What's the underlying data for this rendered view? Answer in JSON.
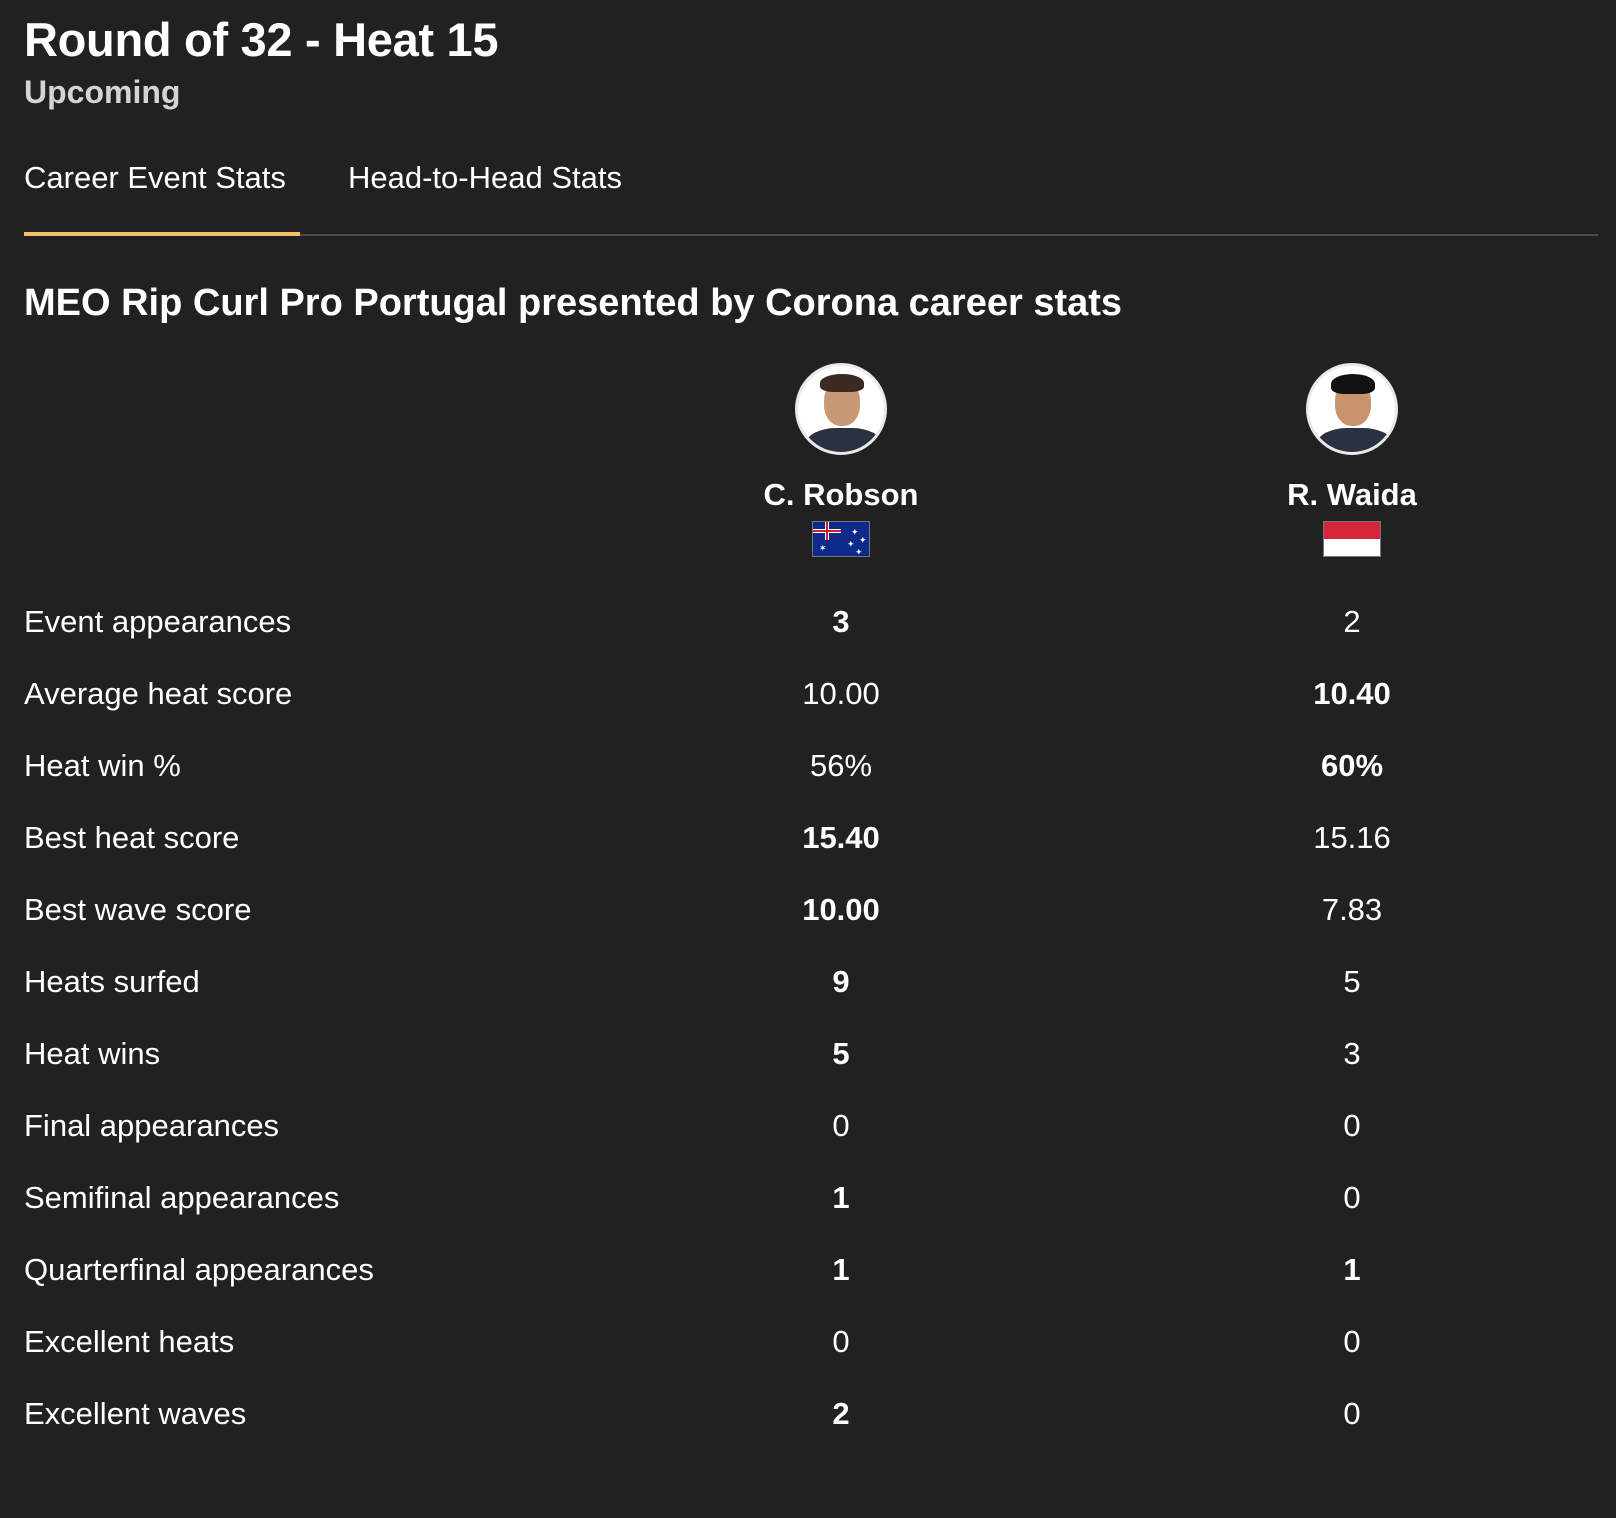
{
  "header": {
    "title": "Round of 32 - Heat 15",
    "status": "Upcoming"
  },
  "tabs": [
    {
      "label": "Career Event Stats",
      "active": true
    },
    {
      "label": "Head-to-Head Stats",
      "active": false
    }
  ],
  "accent_color": "#f4c16f",
  "section_title": "MEO Rip Curl Pro Portugal presented by Corona career stats",
  "surfers": [
    {
      "name": "C. Robson",
      "flag": "australia-flag-icon"
    },
    {
      "name": "R. Waida",
      "flag": "indonesia-flag-icon"
    }
  ],
  "stats": [
    {
      "label": "Event appearances",
      "a": "3",
      "b": "2",
      "leader": "a"
    },
    {
      "label": "Average heat score",
      "a": "10.00",
      "b": "10.40",
      "leader": "b"
    },
    {
      "label": "Heat win %",
      "a": "56%",
      "b": "60%",
      "leader": "b"
    },
    {
      "label": "Best heat score",
      "a": "15.40",
      "b": "15.16",
      "leader": "a"
    },
    {
      "label": "Best wave score",
      "a": "10.00",
      "b": "7.83",
      "leader": "a"
    },
    {
      "label": "Heats surfed",
      "a": "9",
      "b": "5",
      "leader": "a"
    },
    {
      "label": "Heat wins",
      "a": "5",
      "b": "3",
      "leader": "a"
    },
    {
      "label": "Final appearances",
      "a": "0",
      "b": "0",
      "leader": "none"
    },
    {
      "label": "Semifinal appearances",
      "a": "1",
      "b": "0",
      "leader": "a"
    },
    {
      "label": "Quarterfinal appearances",
      "a": "1",
      "b": "1",
      "leader": "both"
    },
    {
      "label": "Excellent heats",
      "a": "0",
      "b": "0",
      "leader": "none"
    },
    {
      "label": "Excellent waves",
      "a": "2",
      "b": "0",
      "leader": "a"
    }
  ]
}
